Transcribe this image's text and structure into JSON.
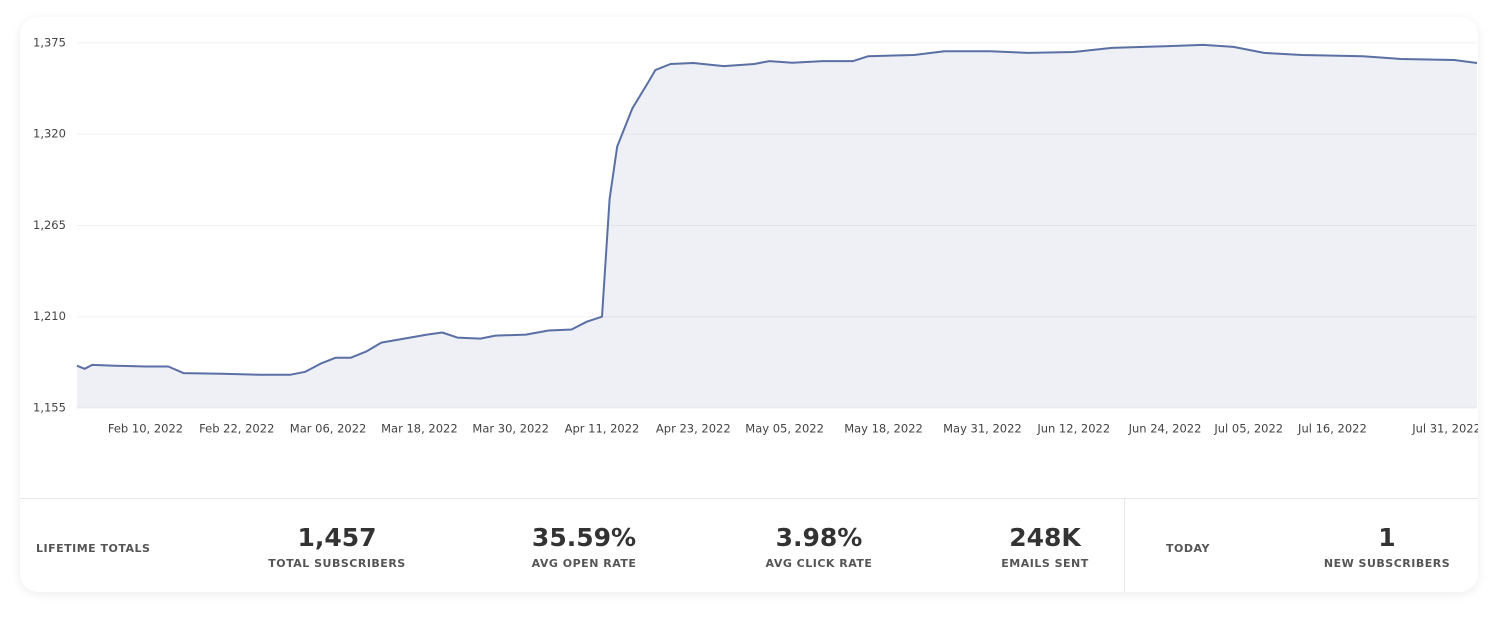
{
  "chart_data": {
    "type": "area",
    "x": [
      "2022-02-01",
      "2022-02-02",
      "2022-02-03",
      "2022-02-06",
      "2022-02-10",
      "2022-02-13",
      "2022-02-15",
      "2022-02-20",
      "2022-02-25",
      "2022-03-01",
      "2022-03-03",
      "2022-03-05",
      "2022-03-07",
      "2022-03-09",
      "2022-03-11",
      "2022-03-13",
      "2022-03-16",
      "2022-03-19",
      "2022-03-21",
      "2022-03-23",
      "2022-03-26",
      "2022-03-28",
      "2022-04-01",
      "2022-04-04",
      "2022-04-07",
      "2022-04-09",
      "2022-04-11",
      "2022-04-12",
      "2022-04-13",
      "2022-04-15",
      "2022-04-17",
      "2022-04-18",
      "2022-04-20",
      "2022-04-23",
      "2022-04-27",
      "2022-05-01",
      "2022-05-03",
      "2022-05-06",
      "2022-05-10",
      "2022-05-14",
      "2022-05-16",
      "2022-05-22",
      "2022-05-26",
      "2022-06-01",
      "2022-06-06",
      "2022-06-12",
      "2022-06-17",
      "2022-06-24",
      "2022-06-29",
      "2022-07-03",
      "2022-07-07",
      "2022-07-12",
      "2022-07-20",
      "2022-07-25",
      "2022-08-01",
      "2022-08-04"
    ],
    "series": [
      {
        "name": "Subscribers",
        "color": "#5a6fa3",
        "values": [
          1180.5,
          1178.6,
          1181,
          1180.5,
          1180,
          1180,
          1176,
          1175.6,
          1175,
          1175,
          1176.8,
          1181.7,
          1185.3,
          1185.3,
          1189,
          1194.4,
          1196.8,
          1199.2,
          1200.5,
          1197.4,
          1196.8,
          1198.6,
          1199.2,
          1201.7,
          1202.3,
          1207,
          1210,
          1281,
          1312.6,
          1335.6,
          1350.8,
          1358.6,
          1362.3,
          1362.9,
          1361,
          1362.3,
          1364,
          1363,
          1364,
          1364,
          1367,
          1367.7,
          1370,
          1370,
          1369,
          1369.5,
          1372,
          1373,
          1373.8,
          1372.6,
          1369,
          1367.7,
          1367,
          1365.3,
          1364.7,
          1362.9
        ]
      }
    ],
    "xlim": [
      "2022-02-01",
      "2022-08-04"
    ],
    "xticks": [
      {
        "value": "2022-02-10",
        "label": "Feb 10, 2022"
      },
      {
        "value": "2022-02-22",
        "label": "Feb 22, 2022"
      },
      {
        "value": "2022-03-06",
        "label": "Mar 06, 2022"
      },
      {
        "value": "2022-03-18",
        "label": "Mar 18, 2022"
      },
      {
        "value": "2022-03-30",
        "label": "Mar 30, 2022"
      },
      {
        "value": "2022-04-11",
        "label": "Apr 11, 2022"
      },
      {
        "value": "2022-04-23",
        "label": "Apr 23, 2022"
      },
      {
        "value": "2022-05-05",
        "label": "May 05, 2022"
      },
      {
        "value": "2022-05-18",
        "label": "May 18, 2022"
      },
      {
        "value": "2022-05-31",
        "label": "May 31, 2022"
      },
      {
        "value": "2022-06-12",
        "label": "Jun 12, 2022"
      },
      {
        "value": "2022-06-24",
        "label": "Jun 24, 2022"
      },
      {
        "value": "2022-07-05",
        "label": "Jul 05, 2022"
      },
      {
        "value": "2022-07-16",
        "label": "Jul 16, 2022"
      },
      {
        "value": "2022-07-31",
        "label": "Jul 31, 2022"
      }
    ],
    "ylim": [
      1155,
      1390
    ],
    "yticks": [
      {
        "value": 1155,
        "label": "1,155"
      },
      {
        "value": 1210,
        "label": "1,210"
      },
      {
        "value": 1265,
        "label": "1,265"
      },
      {
        "value": 1320,
        "label": "1,320"
      },
      {
        "value": 1375,
        "label": "1,375"
      }
    ],
    "grid": true
  },
  "totals": {
    "title": "LIFETIME TOTALS",
    "items": [
      {
        "value": "1,457",
        "label": "TOTAL SUBSCRIBERS"
      },
      {
        "value": "35.59%",
        "label": "AVG OPEN RATE"
      },
      {
        "value": "3.98%",
        "label": "AVG CLICK RATE"
      },
      {
        "value": "248K",
        "label": "EMAILS SENT"
      }
    ]
  },
  "today": {
    "title": "TODAY",
    "items": [
      {
        "value": "1",
        "label": "NEW SUBSCRIBERS"
      }
    ]
  }
}
